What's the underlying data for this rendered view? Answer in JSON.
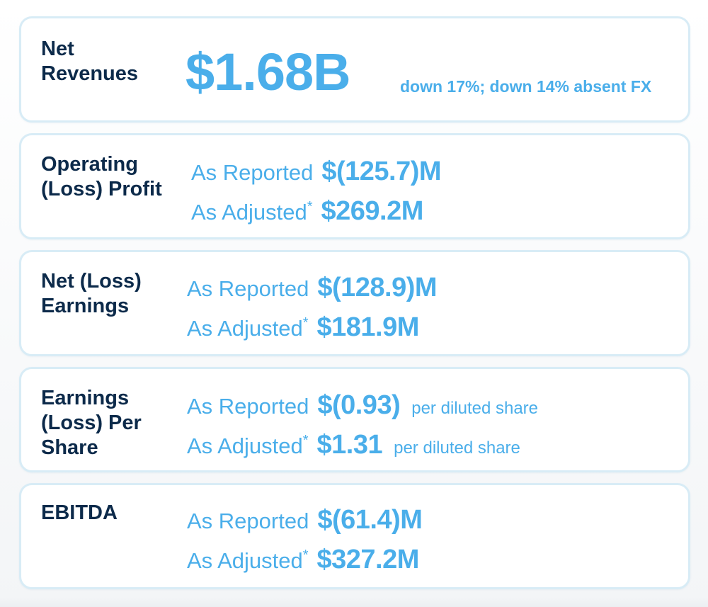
{
  "cards": [
    {
      "label_lines": [
        "Net",
        "Revenues"
      ],
      "value": "$1.68B",
      "value_note": "down 17%; down 14% absent FX"
    },
    {
      "label_lines": [
        "Operating",
        "(Loss) Profit"
      ],
      "reported_prefix": "As Reported",
      "reported_value": "$(125.7)M",
      "adjusted_prefix": "As Adjusted",
      "asterisk": "*",
      "adjusted_value": "$269.2M"
    },
    {
      "label_lines": [
        "Net (Loss)",
        "Earnings"
      ],
      "reported_prefix": "As Reported",
      "reported_value": "$(128.9)M",
      "adjusted_prefix": "As Adjusted",
      "asterisk": "*",
      "adjusted_value": "$181.9M"
    },
    {
      "label_lines": [
        "Earnings",
        "(Loss) Per",
        "Share"
      ],
      "reported_prefix": "As Reported",
      "reported_value": "$(0.93)",
      "reported_suffix": "per diluted share",
      "adjusted_prefix": "As Adjusted",
      "asterisk": "*",
      "adjusted_value": "$1.31",
      "adjusted_suffix": "per diluted share"
    },
    {
      "label_lines": [
        "EBITDA"
      ],
      "reported_prefix": "As Reported",
      "reported_value": "$(61.4)M",
      "adjusted_prefix": "As Adjusted",
      "asterisk": "*",
      "adjusted_value": "$327.2M"
    }
  ],
  "colors": {
    "label": "#0c2a4a",
    "accent": "#4aaeea",
    "card_border": "#d8ecf6"
  }
}
